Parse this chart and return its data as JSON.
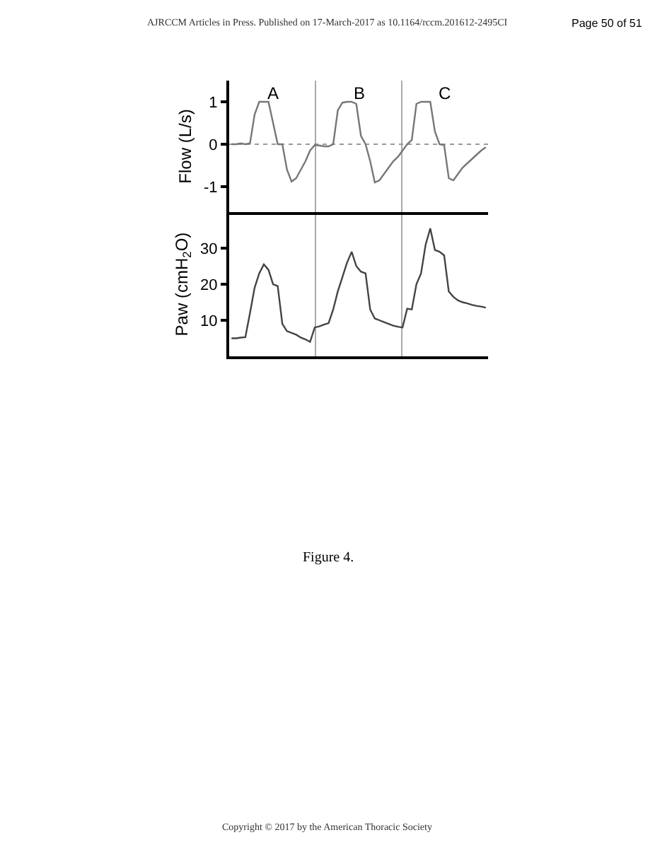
{
  "chart_data": [
    {
      "type": "line",
      "ylabel": "Flow (L/s)",
      "categories": [
        null,
        null,
        null,
        null,
        null,
        null,
        null,
        null,
        null,
        null,
        null,
        null,
        null,
        null,
        null,
        null,
        null,
        null,
        null,
        null,
        null,
        null,
        null,
        null,
        null,
        null,
        null,
        null,
        null,
        null,
        null,
        null,
        null,
        null,
        null,
        null,
        null,
        null,
        null,
        null,
        null,
        null,
        null,
        null,
        null,
        null,
        null,
        null,
        null,
        null,
        null,
        null,
        null,
        null,
        null,
        null
      ],
      "series": [
        {
          "color": "#777777",
          "values": [
            0,
            0,
            0.02,
            0,
            0.02,
            0.7,
            1,
            1,
            1,
            0.5,
            0,
            0,
            -0.6,
            -0.88,
            -0.8,
            -0.6,
            -0.4,
            -0.15,
            -0.02,
            -0.03,
            -0.05,
            -0.05,
            0,
            0.8,
            0.98,
            1,
            1,
            0.95,
            0.2,
            0,
            -0.4,
            -0.9,
            -0.85,
            -0.7,
            -0.55,
            -0.4,
            -0.3,
            -0.15,
            0,
            0.1,
            0.95,
            1,
            1,
            1,
            0.3,
            0,
            -0.02,
            -0.8,
            -0.85,
            -0.7,
            -0.55,
            -0.45,
            -0.35,
            -0.25,
            -0.15,
            -0.07
          ]
        }
      ],
      "ylim": [
        -1.6,
        1.5
      ],
      "yticks": [
        -1,
        0,
        1
      ],
      "grid": false,
      "tick_labels": "y",
      "ref_lines": [
        {
          "axis": "y",
          "value": 0,
          "color": "#999999",
          "line_style": "dotted"
        }
      ],
      "annotations": [
        "AJRCCM Articles in Press. Published on 17-March-2017 as 10.1164/rccm.201612-2495CI",
        "Page 50 of 51",
        "A",
        "B",
        "C"
      ]
    },
    {
      "type": "line",
      "title": "Figure 4.",
      "ylabel": "Paw (cmH$_{2}$O)",
      "categories": [
        null,
        null,
        null,
        null,
        null,
        null,
        null,
        null,
        null,
        null,
        null,
        null,
        null,
        null,
        null,
        null,
        null,
        null,
        null,
        null,
        null,
        null,
        null,
        null,
        null,
        null,
        null,
        null,
        null,
        null,
        null,
        null,
        null,
        null,
        null,
        null,
        null,
        null,
        null,
        null,
        null,
        null,
        null,
        null,
        null,
        null,
        null,
        null,
        null,
        null,
        null,
        null,
        null,
        null,
        null,
        null
      ],
      "series": [
        {
          "color": "#444444",
          "values": [
            5,
            5,
            5.2,
            5.3,
            12,
            19,
            23,
            25.5,
            24,
            20,
            19.5,
            9,
            7,
            6.5,
            6,
            5.2,
            4.7,
            4,
            8,
            8.3,
            8.8,
            9.2,
            13,
            18,
            22,
            26,
            29,
            25,
            23.5,
            23,
            13,
            10.5,
            10,
            9.5,
            9,
            8.5,
            8.2,
            8,
            13.2,
            13,
            20,
            23,
            31,
            35.5,
            29.5,
            29,
            28,
            18,
            16.5,
            15.5,
            15,
            14.7,
            14.3,
            14,
            13.8,
            13.5
          ]
        }
      ],
      "ylim": [
        0,
        40
      ],
      "yticks": [
        10,
        20,
        30
      ],
      "grid": false,
      "tick_labels": "y",
      "annotations": [
        "Copyright © 2017 by the American Thoracic Society"
      ]
    }
  ]
}
